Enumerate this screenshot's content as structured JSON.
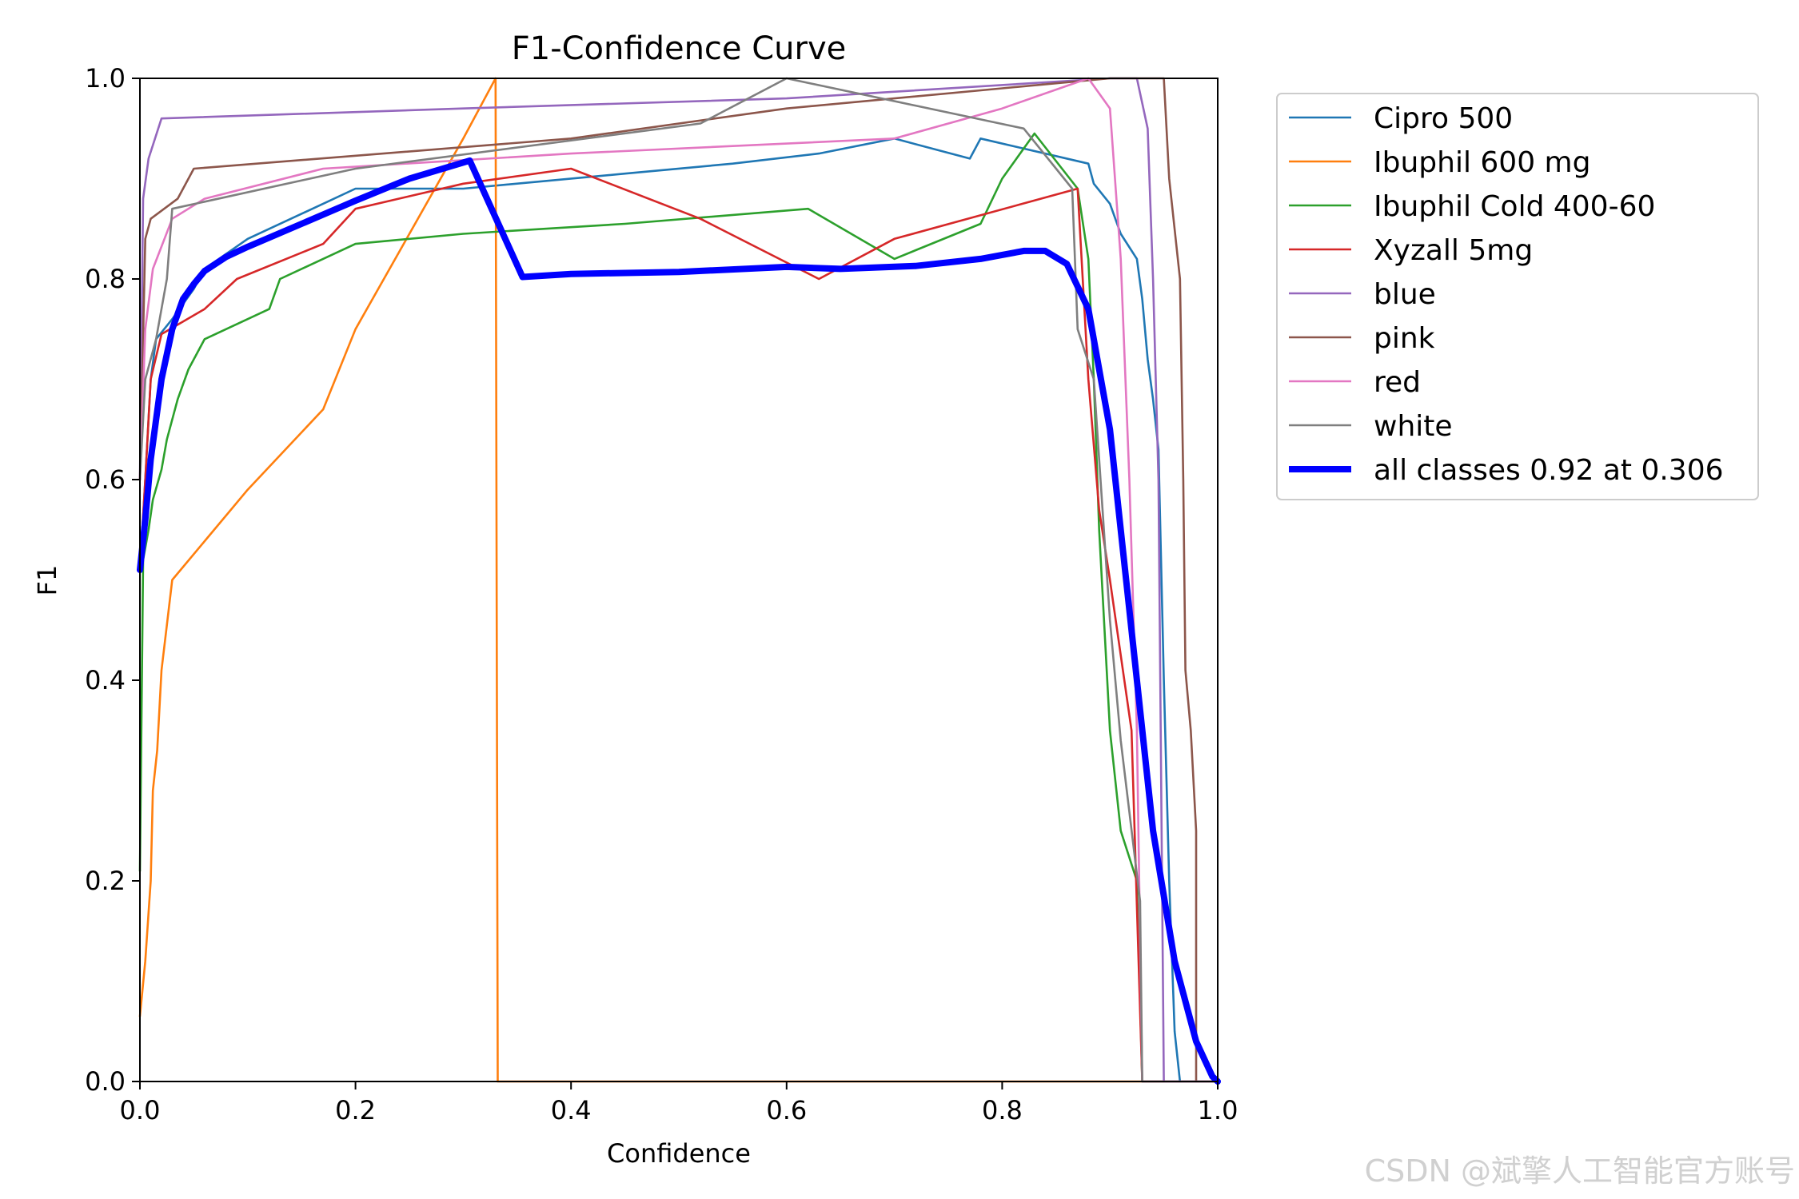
{
  "chart_data": {
    "type": "line",
    "title": "F1-Confidence Curve",
    "xlabel": "Confidence",
    "ylabel": "F1",
    "xlim": [
      0,
      1
    ],
    "ylim": [
      0,
      1
    ],
    "xticks": [
      "0.0",
      "0.2",
      "0.4",
      "0.6",
      "0.8",
      "1.0"
    ],
    "yticks": [
      "0.0",
      "0.2",
      "0.4",
      "0.6",
      "0.8",
      "1.0"
    ],
    "grid": false,
    "legend_position": "outside-right",
    "series": [
      {
        "name": "Cipro 500",
        "color": "#1f77b4",
        "width": "thin",
        "points": [
          [
            0,
            0.51
          ],
          [
            0.005,
            0.6
          ],
          [
            0.01,
            0.7
          ],
          [
            0.015,
            0.74
          ],
          [
            0.03,
            0.76
          ],
          [
            0.05,
            0.79
          ],
          [
            0.06,
            0.81
          ],
          [
            0.1,
            0.84
          ],
          [
            0.16,
            0.87
          ],
          [
            0.2,
            0.89
          ],
          [
            0.3,
            0.89
          ],
          [
            0.45,
            0.905
          ],
          [
            0.55,
            0.915
          ],
          [
            0.63,
            0.925
          ],
          [
            0.7,
            0.94
          ],
          [
            0.77,
            0.92
          ],
          [
            0.78,
            0.94
          ],
          [
            0.88,
            0.915
          ],
          [
            0.885,
            0.895
          ],
          [
            0.9,
            0.875
          ],
          [
            0.91,
            0.845
          ],
          [
            0.925,
            0.82
          ],
          [
            0.93,
            0.78
          ],
          [
            0.935,
            0.72
          ],
          [
            0.94,
            0.68
          ],
          [
            0.945,
            0.63
          ],
          [
            0.95,
            0.4
          ],
          [
            0.955,
            0.2
          ],
          [
            0.96,
            0.05
          ],
          [
            0.965,
            0.0
          ],
          [
            1.0,
            0.0
          ]
        ]
      },
      {
        "name": "Ibuphil 600 mg",
        "color": "#ff7f0e",
        "width": "thin",
        "points": [
          [
            0,
            0.065
          ],
          [
            0.005,
            0.12
          ],
          [
            0.01,
            0.2
          ],
          [
            0.012,
            0.29
          ],
          [
            0.016,
            0.33
          ],
          [
            0.02,
            0.41
          ],
          [
            0.03,
            0.5
          ],
          [
            0.1,
            0.59
          ],
          [
            0.17,
            0.67
          ],
          [
            0.2,
            0.75
          ],
          [
            0.3,
            0.94
          ],
          [
            0.33,
            1.0
          ],
          [
            0.332,
            0.0
          ],
          [
            1.0,
            0.0
          ]
        ]
      },
      {
        "name": "Ibuphil Cold 400-60",
        "color": "#2ca02c",
        "width": "thin",
        "points": [
          [
            0,
            0.21
          ],
          [
            0.003,
            0.52
          ],
          [
            0.008,
            0.55
          ],
          [
            0.012,
            0.58
          ],
          [
            0.02,
            0.61
          ],
          [
            0.025,
            0.64
          ],
          [
            0.035,
            0.68
          ],
          [
            0.045,
            0.71
          ],
          [
            0.06,
            0.74
          ],
          [
            0.12,
            0.77
          ],
          [
            0.13,
            0.8
          ],
          [
            0.2,
            0.835
          ],
          [
            0.3,
            0.845
          ],
          [
            0.45,
            0.855
          ],
          [
            0.62,
            0.87
          ],
          [
            0.7,
            0.82
          ],
          [
            0.78,
            0.855
          ],
          [
            0.8,
            0.9
          ],
          [
            0.83,
            0.945
          ],
          [
            0.87,
            0.89
          ],
          [
            0.88,
            0.82
          ],
          [
            0.885,
            0.7
          ],
          [
            0.89,
            0.55
          ],
          [
            0.9,
            0.35
          ],
          [
            0.91,
            0.25
          ],
          [
            0.925,
            0.2
          ],
          [
            0.93,
            0.0
          ],
          [
            1.0,
            0.0
          ]
        ]
      },
      {
        "name": "Xyzall 5mg",
        "color": "#d62728",
        "width": "thin",
        "points": [
          [
            0,
            0.51
          ],
          [
            0.005,
            0.6
          ],
          [
            0.01,
            0.7
          ],
          [
            0.02,
            0.745
          ],
          [
            0.06,
            0.77
          ],
          [
            0.09,
            0.8
          ],
          [
            0.17,
            0.835
          ],
          [
            0.2,
            0.87
          ],
          [
            0.3,
            0.895
          ],
          [
            0.4,
            0.91
          ],
          [
            0.52,
            0.86
          ],
          [
            0.63,
            0.8
          ],
          [
            0.7,
            0.84
          ],
          [
            0.87,
            0.89
          ],
          [
            0.88,
            0.7
          ],
          [
            0.89,
            0.57
          ],
          [
            0.9,
            0.5
          ],
          [
            0.92,
            0.35
          ],
          [
            0.93,
            0.0
          ],
          [
            1.0,
            0.0
          ]
        ]
      },
      {
        "name": "blue",
        "color": "#9467bd",
        "width": "thin",
        "points": [
          [
            0,
            0.6
          ],
          [
            0.003,
            0.88
          ],
          [
            0.008,
            0.92
          ],
          [
            0.02,
            0.96
          ],
          [
            0.3,
            0.97
          ],
          [
            0.6,
            0.98
          ],
          [
            0.9,
            1.0
          ],
          [
            0.925,
            1.0
          ],
          [
            0.935,
            0.95
          ],
          [
            0.94,
            0.8
          ],
          [
            0.945,
            0.6
          ],
          [
            0.95,
            0.0
          ],
          [
            1.0,
            0.0
          ]
        ]
      },
      {
        "name": "pink",
        "color": "#8c564b",
        "width": "thin",
        "points": [
          [
            0,
            0.6
          ],
          [
            0.005,
            0.84
          ],
          [
            0.01,
            0.86
          ],
          [
            0.035,
            0.88
          ],
          [
            0.05,
            0.91
          ],
          [
            0.4,
            0.94
          ],
          [
            0.6,
            0.97
          ],
          [
            0.8,
            0.99
          ],
          [
            0.9,
            1.0
          ],
          [
            0.95,
            1.0
          ],
          [
            0.955,
            0.9
          ],
          [
            0.965,
            0.8
          ],
          [
            0.968,
            0.6
          ],
          [
            0.97,
            0.41
          ],
          [
            0.975,
            0.35
          ],
          [
            0.98,
            0.25
          ],
          [
            0.98,
            0.0
          ],
          [
            1.0,
            0.0
          ]
        ]
      },
      {
        "name": "red",
        "color": "#e377c2",
        "width": "thin",
        "points": [
          [
            0,
            0.6
          ],
          [
            0.005,
            0.75
          ],
          [
            0.012,
            0.81
          ],
          [
            0.03,
            0.86
          ],
          [
            0.06,
            0.88
          ],
          [
            0.17,
            0.91
          ],
          [
            0.4,
            0.925
          ],
          [
            0.7,
            0.94
          ],
          [
            0.8,
            0.97
          ],
          [
            0.88,
            1.0
          ],
          [
            0.9,
            0.97
          ],
          [
            0.91,
            0.82
          ],
          [
            0.918,
            0.6
          ],
          [
            0.925,
            0.35
          ],
          [
            0.93,
            0.0
          ],
          [
            1.0,
            0.0
          ]
        ]
      },
      {
        "name": "white",
        "color": "#7f7f7f",
        "width": "thin",
        "points": [
          [
            0,
            0.6
          ],
          [
            0.005,
            0.7
          ],
          [
            0.015,
            0.74
          ],
          [
            0.025,
            0.8
          ],
          [
            0.03,
            0.87
          ],
          [
            0.2,
            0.91
          ],
          [
            0.52,
            0.955
          ],
          [
            0.6,
            1.0
          ],
          [
            0.82,
            0.95
          ],
          [
            0.865,
            0.89
          ],
          [
            0.87,
            0.75
          ],
          [
            0.885,
            0.7
          ],
          [
            0.9,
            0.46
          ],
          [
            0.91,
            0.34
          ],
          [
            0.928,
            0.18
          ],
          [
            0.93,
            0.0
          ],
          [
            1.0,
            0.0
          ]
        ]
      },
      {
        "name": "all classes 0.92 at 0.306",
        "color": "#0000ff",
        "width": "thick",
        "points": [
          [
            0,
            0.51
          ],
          [
            0.005,
            0.56
          ],
          [
            0.01,
            0.62
          ],
          [
            0.02,
            0.7
          ],
          [
            0.03,
            0.75
          ],
          [
            0.04,
            0.78
          ],
          [
            0.05,
            0.795
          ],
          [
            0.06,
            0.808
          ],
          [
            0.08,
            0.822
          ],
          [
            0.1,
            0.832
          ],
          [
            0.15,
            0.855
          ],
          [
            0.2,
            0.878
          ],
          [
            0.25,
            0.9
          ],
          [
            0.306,
            0.918
          ],
          [
            0.355,
            0.802
          ],
          [
            0.4,
            0.805
          ],
          [
            0.5,
            0.807
          ],
          [
            0.6,
            0.812
          ],
          [
            0.65,
            0.81
          ],
          [
            0.72,
            0.813
          ],
          [
            0.78,
            0.82
          ],
          [
            0.82,
            0.828
          ],
          [
            0.84,
            0.828
          ],
          [
            0.86,
            0.815
          ],
          [
            0.88,
            0.77
          ],
          [
            0.9,
            0.65
          ],
          [
            0.92,
            0.45
          ],
          [
            0.94,
            0.25
          ],
          [
            0.96,
            0.12
          ],
          [
            0.98,
            0.04
          ],
          [
            0.995,
            0.005
          ],
          [
            1.0,
            0.0
          ]
        ]
      }
    ]
  },
  "watermark": "CSDN @斌擎人工智能官方账号"
}
